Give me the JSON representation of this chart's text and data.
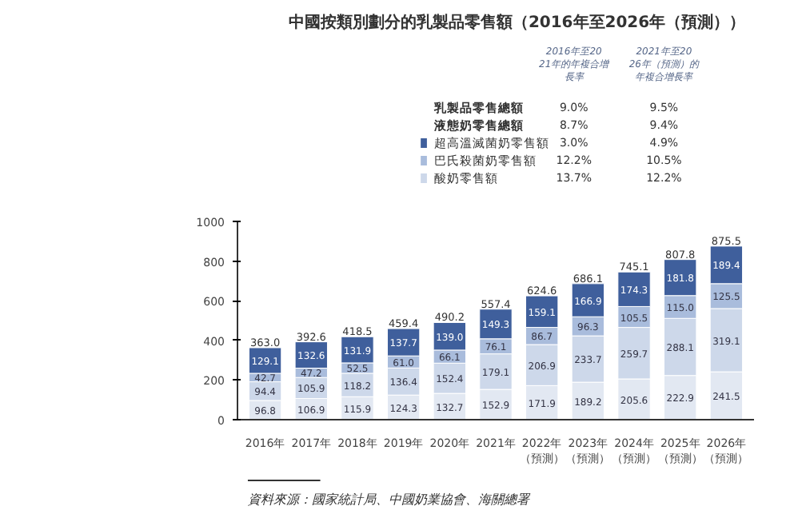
{
  "chart_data": {
    "type": "bar",
    "stacked": true,
    "title": "中國按類別劃分的乳製品零售額（2016年至2026年（預測））",
    "categories": [
      "2016年",
      "2017年",
      "2018年",
      "2019年",
      "2020年",
      "2021年",
      "2022年（預測）",
      "2023年（預測）",
      "2024年（預測）",
      "2025年（預測）",
      "2026年（預測）"
    ],
    "series": [
      {
        "color": "#e2e8f2",
        "values": [
          96.8,
          106.9,
          115.9,
          124.3,
          132.7,
          152.9,
          171.9,
          189.2,
          205.6,
          222.9,
          241.5
        ],
        "value_labels": [
          "96.8",
          "106.9",
          "115.9",
          "124.3",
          "132.7",
          "152.9",
          "171.9",
          "189.2",
          "205.6",
          "222.9",
          "241.5"
        ]
      },
      {
        "name": "酸奶零售額",
        "color": "#cdd8ea",
        "values": [
          94.4,
          105.9,
          118.2,
          136.4,
          152.4,
          179.1,
          206.9,
          233.7,
          259.7,
          288.1,
          319.1
        ],
        "value_labels": [
          "94.4",
          "105.9",
          "118.2",
          "136.4",
          "152.4",
          "179.1",
          "206.9",
          "233.7",
          "259.7",
          "288.1",
          "319.1"
        ]
      },
      {
        "name": "巴氏殺菌奶零售額",
        "color": "#a9bcdc",
        "values": [
          42.7,
          47.2,
          52.5,
          61.0,
          66.1,
          76.1,
          86.7,
          96.3,
          105.5,
          115.0,
          125.5
        ],
        "value_labels": [
          "42.7",
          "47.2",
          "52.5",
          "61.0",
          "66.1",
          "76.1",
          "86.7",
          "96.3",
          "105.5",
          "115.0",
          "125.5"
        ]
      },
      {
        "name": "超高溫滅菌奶零售額",
        "color": "#3f5f9c",
        "values": [
          129.1,
          132.6,
          131.9,
          137.7,
          139.0,
          149.3,
          159.1,
          166.9,
          174.3,
          181.8,
          189.4
        ],
        "value_labels": [
          "129.1",
          "132.6",
          "131.9",
          "137.7",
          "139.0",
          "149.3",
          "159.1",
          "166.9",
          "174.3",
          "181.8",
          "189.4"
        ]
      }
    ],
    "totals": [
      "363.0",
      "392.6",
      "418.5",
      "459.4",
      "490.2",
      "557.4",
      "624.6",
      "686.1",
      "745.1",
      "807.8",
      "875.5"
    ],
    "ylim": [
      0,
      1000
    ],
    "yticks": [
      0,
      200,
      400,
      600,
      800,
      1000
    ],
    "legend": "top",
    "annotations": [
      "2016年至2021年的年複合增長率",
      "2021年至2026年（預測）的年複合增長率",
      "乳製品零售總額",
      "9.0%",
      "9.5%",
      "液態奶零售總額",
      "8.7%",
      "9.4%",
      "13.7%",
      "12.2%",
      "12.2%",
      "10.5%",
      "3.0%",
      "4.9%",
      "資料來源：國家統計局、中國奶業協會、海關總署"
    ]
  }
}
